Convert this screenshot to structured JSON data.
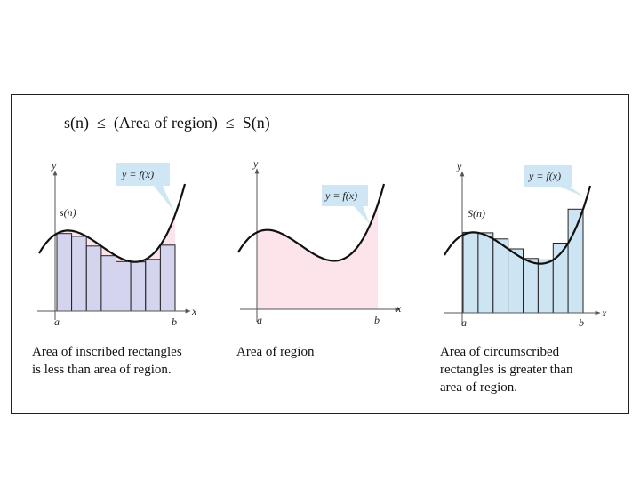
{
  "headline": "s(n)  ≤  (Area of region)  ≤  S(n)",
  "colors": {
    "curve": "#111111",
    "region_fill": "#fde3ea",
    "inscribed_fill": "#d4d4ef",
    "circumscribed_fill": "#cde4f3",
    "callout_fill": "#cfe6f5"
  },
  "panels": [
    {
      "id": "inscribed",
      "callout": "y = f(x)",
      "sum_label": "s(n)",
      "y_label": "y",
      "x_label": "x",
      "a_label": "a",
      "b_label": "b",
      "caption": [
        "Area of inscribed rectangles",
        "is less than area of region."
      ]
    },
    {
      "id": "region",
      "callout": "y = f(x)",
      "y_label": "y",
      "x_label": "x",
      "a_label": "a",
      "b_label": "b",
      "caption": [
        "Area of region"
      ]
    },
    {
      "id": "circumscribed",
      "callout": "y = f(x)",
      "sum_label": "S(n)",
      "y_label": "y",
      "x_label": "x",
      "a_label": "a",
      "b_label": "b",
      "caption": [
        "Area of circumscribed",
        "rectangles is greater than",
        "area of region."
      ]
    }
  ],
  "rectangle_count": 8
}
